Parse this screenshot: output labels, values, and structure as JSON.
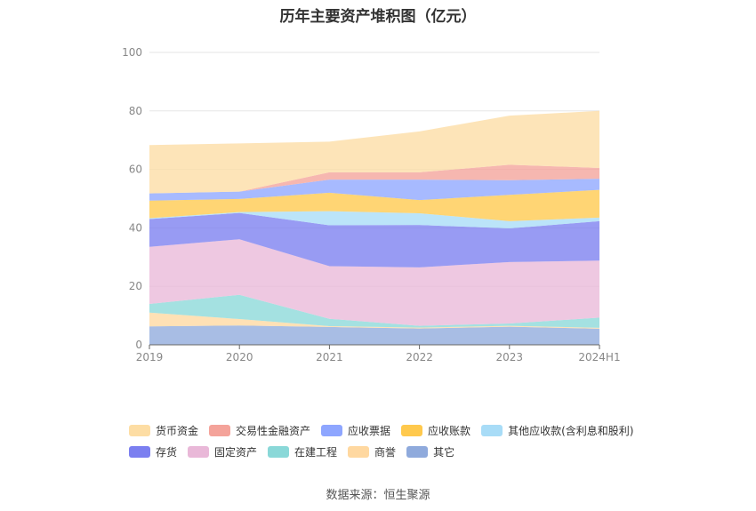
{
  "chart_data": {
    "type": "area",
    "title": "历年主要资产堆积图（亿元）",
    "stacked": true,
    "categories": [
      "2019",
      "2020",
      "2021",
      "2022",
      "2023",
      "2024H1"
    ],
    "ylim": [
      0,
      100
    ],
    "yticks": [
      0,
      20,
      40,
      60,
      80,
      100
    ],
    "grid": true,
    "legend_position": "bottom",
    "series": [
      {
        "name": "其它",
        "color": "#8faadc",
        "values": [
          6.3,
          6.6,
          6.1,
          5.6,
          6.2,
          5.5
        ]
      },
      {
        "name": "商誉",
        "color": "#ffd8a0",
        "values": [
          4.7,
          2.2,
          0.3,
          0.3,
          0.3,
          0.3
        ]
      },
      {
        "name": "在建工程",
        "color": "#8ad8d8",
        "values": [
          3.0,
          8.3,
          2.5,
          0.6,
          0.8,
          3.5
        ]
      },
      {
        "name": "固定资产",
        "color": "#e9b8d8",
        "values": [
          19.5,
          19.0,
          18.0,
          20.0,
          21.0,
          19.5
        ]
      },
      {
        "name": "存货",
        "color": "#7b7ff0",
        "values": [
          9.5,
          9.0,
          14.0,
          14.5,
          11.5,
          13.5
        ]
      },
      {
        "name": "其他应收款(含利息和股利)",
        "color": "#a8dcf7",
        "values": [
          0.3,
          0.3,
          4.8,
          4.0,
          2.5,
          1.2
        ]
      },
      {
        "name": "应收账款",
        "color": "#ffc94d",
        "values": [
          6.0,
          4.5,
          6.3,
          4.5,
          9.0,
          9.5
        ]
      },
      {
        "name": "应收票据",
        "color": "#8ea6ff",
        "values": [
          2.5,
          2.5,
          4.5,
          7.0,
          5.0,
          3.8
        ]
      },
      {
        "name": "交易性金融资产",
        "color": "#f4a39a",
        "values": [
          0.0,
          0.0,
          2.5,
          2.5,
          5.3,
          3.7
        ]
      },
      {
        "name": "货币资金",
        "color": "#fddda4",
        "values": [
          16.5,
          16.5,
          10.5,
          14.0,
          16.8,
          19.5
        ]
      }
    ]
  },
  "legend_rows": [
    [
      "货币资金",
      "交易性金融资产",
      "应收票据",
      "应收账款",
      "其他应收款(含利息和股利)"
    ],
    [
      "存货",
      "固定资产",
      "在建工程",
      "商誉",
      "其它"
    ]
  ],
  "source": "数据来源：恒生聚源"
}
